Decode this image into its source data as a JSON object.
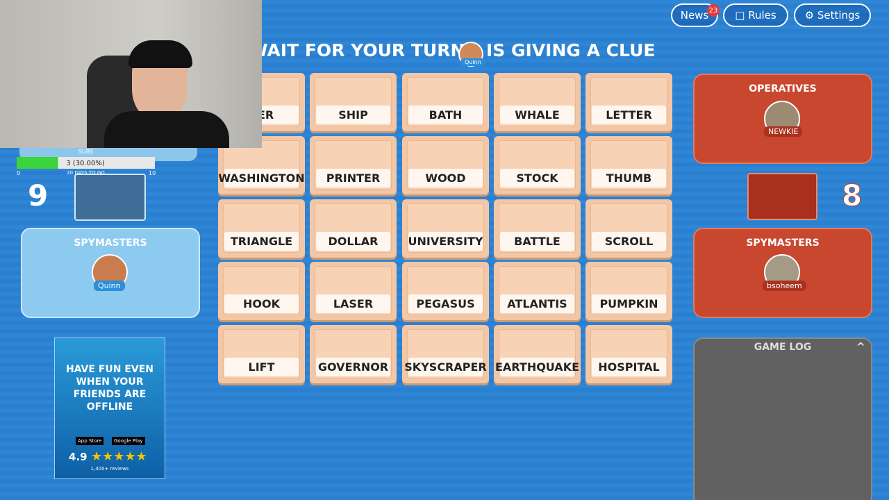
{
  "topbar": {
    "news": "News",
    "news_badge": "23",
    "rules": "Rules",
    "settings": "Settings"
  },
  "header": {
    "prefix": "WAIT FOR YOUR TURN,",
    "avatar": "Quinn",
    "suffix": "IS GIVING A CLUE"
  },
  "stream": {
    "subs_title": "SUBS",
    "subs_value": 3,
    "subs_label": "3 (30.00%)",
    "min": 0,
    "max": 10,
    "days": "20 DAYS TO GO"
  },
  "blue_team": {
    "score": "9",
    "spymasters_title": "SPYMASTERS",
    "spymaster": "Quinn"
  },
  "red_team": {
    "score": "8",
    "operatives_title": "OPERATIVES",
    "operative": "NEWKIE",
    "spymasters_title": "SPYMASTERS",
    "spymaster": "bsoheem"
  },
  "cards": [
    [
      "BER",
      "SHIP",
      "BATH",
      "WHALE",
      "LETTER"
    ],
    [
      "WASHINGTON",
      "PRINTER",
      "WOOD",
      "STOCK",
      "THUMB"
    ],
    [
      "TRIANGLE",
      "DOLLAR",
      "UNIVERSITY",
      "BATTLE",
      "SCROLL"
    ],
    [
      "HOOK",
      "LASER",
      "PEGASUS",
      "ATLANTIS",
      "PUMPKIN"
    ],
    [
      "LIFT",
      "GOVERNOR",
      "SKYSCRAPER",
      "EARTHQUAKE",
      "HOSPITAL"
    ]
  ],
  "ad": {
    "headline": "HAVE FUN EVEN WHEN YOUR FRIENDS ARE OFFLINE",
    "app_store": "App Store",
    "google_play": "Google Play",
    "rating": "4.9",
    "reviews": "1,400+ reviews"
  },
  "game_log": {
    "title": "GAME LOG"
  }
}
